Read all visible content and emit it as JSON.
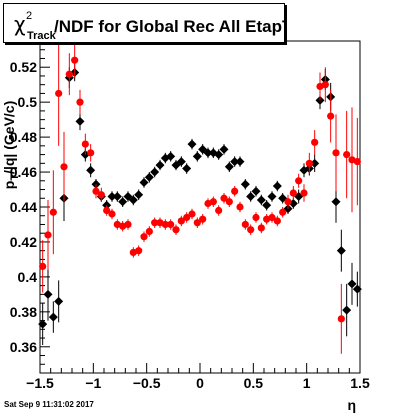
{
  "title": {
    "symbol": "χ",
    "superscript": "2",
    "subscript": "Track",
    "rest": "/NDF for Global Rec All EtapT"
  },
  "footer_timestamp": "Sat Sep  9 11:31:02 2017",
  "chart_data": {
    "type": "scatter",
    "xlabel": "η",
    "ylabel": "p_{T}/|q| (GeV/c)",
    "xlim": [
      -1.5,
      1.5
    ],
    "ylim": [
      0.345,
      0.535
    ],
    "xticks": [
      -1.5,
      -1,
      -0.5,
      0,
      0.5,
      1,
      1.5
    ],
    "xtick_labels": [
      "−1.5",
      "−1",
      "−0.5",
      "0",
      "0.5",
      "1",
      "1.5"
    ],
    "yticks": [
      0.36,
      0.38,
      0.4,
      0.42,
      0.44,
      0.46,
      0.48,
      0.5,
      0.52
    ],
    "ytick_labels": [
      "0.36",
      "0.38",
      "0.4",
      "0.42",
      "0.44",
      "0.46",
      "0.48",
      "0.5",
      "0.52"
    ],
    "series": [
      {
        "color": "#000000",
        "marker": "diamond",
        "points": [
          {
            "x": -1.475,
            "y": 0.373,
            "err": 0.012
          },
          {
            "x": -1.425,
            "y": 0.39,
            "err": 0.015
          },
          {
            "x": -1.375,
            "y": 0.377,
            "err": 0.009
          },
          {
            "x": -1.325,
            "y": 0.386,
            "err": 0.012
          },
          {
            "x": -1.275,
            "y": 0.445,
            "err": 0.013
          },
          {
            "x": -1.225,
            "y": 0.514,
            "err": 0.006
          },
          {
            "x": -1.175,
            "y": 0.517,
            "err": 0.005
          },
          {
            "x": -1.125,
            "y": 0.489,
            "err": 0.005
          },
          {
            "x": -1.075,
            "y": 0.47,
            "err": 0.004
          },
          {
            "x": -1.025,
            "y": 0.461,
            "err": 0.004
          },
          {
            "x": -0.975,
            "y": 0.453,
            "err": 0.003
          },
          {
            "x": -0.925,
            "y": 0.446,
            "err": 0.003
          },
          {
            "x": -0.875,
            "y": 0.441,
            "err": 0.003
          },
          {
            "x": -0.825,
            "y": 0.446,
            "err": 0.003
          },
          {
            "x": -0.775,
            "y": 0.446,
            "err": 0.003
          },
          {
            "x": -0.725,
            "y": 0.443,
            "err": 0.003
          },
          {
            "x": -0.675,
            "y": 0.446,
            "err": 0.003
          },
          {
            "x": -0.625,
            "y": 0.444,
            "err": 0.003
          },
          {
            "x": -0.575,
            "y": 0.447,
            "err": 0.003
          },
          {
            "x": -0.525,
            "y": 0.454,
            "err": 0.003
          },
          {
            "x": -0.475,
            "y": 0.457,
            "err": 0.003
          },
          {
            "x": -0.425,
            "y": 0.46,
            "err": 0.003
          },
          {
            "x": -0.375,
            "y": 0.464,
            "err": 0.003
          },
          {
            "x": -0.325,
            "y": 0.468,
            "err": 0.003
          },
          {
            "x": -0.275,
            "y": 0.469,
            "err": 0.003
          },
          {
            "x": -0.225,
            "y": 0.464,
            "err": 0.003
          },
          {
            "x": -0.175,
            "y": 0.466,
            "err": 0.003
          },
          {
            "x": -0.125,
            "y": 0.462,
            "err": 0.003
          },
          {
            "x": -0.075,
            "y": 0.476,
            "err": 0.003
          },
          {
            "x": -0.025,
            "y": 0.469,
            "err": 0.003
          },
          {
            "x": 0.025,
            "y": 0.473,
            "err": 0.003
          },
          {
            "x": 0.075,
            "y": 0.471,
            "err": 0.003
          },
          {
            "x": 0.125,
            "y": 0.471,
            "err": 0.003
          },
          {
            "x": 0.175,
            "y": 0.47,
            "err": 0.003
          },
          {
            "x": 0.225,
            "y": 0.473,
            "err": 0.003
          },
          {
            "x": 0.275,
            "y": 0.463,
            "err": 0.003
          },
          {
            "x": 0.325,
            "y": 0.466,
            "err": 0.003
          },
          {
            "x": 0.375,
            "y": 0.466,
            "err": 0.003
          },
          {
            "x": 0.425,
            "y": 0.453,
            "err": 0.003
          },
          {
            "x": 0.475,
            "y": 0.446,
            "err": 0.003
          },
          {
            "x": 0.525,
            "y": 0.449,
            "err": 0.003
          },
          {
            "x": 0.575,
            "y": 0.444,
            "err": 0.003
          },
          {
            "x": 0.625,
            "y": 0.441,
            "err": 0.003
          },
          {
            "x": 0.675,
            "y": 0.446,
            "err": 0.003
          },
          {
            "x": 0.725,
            "y": 0.452,
            "err": 0.003
          },
          {
            "x": 0.775,
            "y": 0.445,
            "err": 0.003
          },
          {
            "x": 0.825,
            "y": 0.439,
            "err": 0.003
          },
          {
            "x": 0.875,
            "y": 0.442,
            "err": 0.003
          },
          {
            "x": 0.925,
            "y": 0.446,
            "err": 0.004
          },
          {
            "x": 0.975,
            "y": 0.461,
            "err": 0.004
          },
          {
            "x": 1.025,
            "y": 0.462,
            "err": 0.004
          },
          {
            "x": 1.075,
            "y": 0.465,
            "err": 0.005
          },
          {
            "x": 1.125,
            "y": 0.501,
            "err": 0.005
          },
          {
            "x": 1.175,
            "y": 0.513,
            "err": 0.006
          },
          {
            "x": 1.225,
            "y": 0.503,
            "err": 0.008
          },
          {
            "x": 1.275,
            "y": 0.443,
            "err": 0.012
          },
          {
            "x": 1.325,
            "y": 0.415,
            "err": 0.012
          },
          {
            "x": 1.375,
            "y": 0.381,
            "err": 0.015
          },
          {
            "x": 1.425,
            "y": 0.396,
            "err": 0.012
          },
          {
            "x": 1.475,
            "y": 0.393,
            "err": 0.01
          }
        ]
      },
      {
        "color": "#ff0000",
        "marker": "circle",
        "points": [
          {
            "x": -1.475,
            "y": 0.406,
            "err": 0.015
          },
          {
            "x": -1.425,
            "y": 0.424,
            "err": 0.02
          },
          {
            "x": -1.375,
            "y": 0.437,
            "err": 0.024
          },
          {
            "x": -1.325,
            "y": 0.505,
            "err": 0.03
          },
          {
            "x": -1.275,
            "y": 0.463,
            "err": 0.02
          },
          {
            "x": -1.225,
            "y": 0.516,
            "err": 0.012
          },
          {
            "x": -1.175,
            "y": 0.524,
            "err": 0.01
          },
          {
            "x": -1.125,
            "y": 0.5,
            "err": 0.007
          },
          {
            "x": -1.075,
            "y": 0.476,
            "err": 0.006
          },
          {
            "x": -1.025,
            "y": 0.471,
            "err": 0.005
          },
          {
            "x": -0.975,
            "y": 0.449,
            "err": 0.004
          },
          {
            "x": -0.925,
            "y": 0.447,
            "err": 0.004
          },
          {
            "x": -0.875,
            "y": 0.438,
            "err": 0.003
          },
          {
            "x": -0.825,
            "y": 0.436,
            "err": 0.003
          },
          {
            "x": -0.775,
            "y": 0.43,
            "err": 0.003
          },
          {
            "x": -0.725,
            "y": 0.429,
            "err": 0.003
          },
          {
            "x": -0.675,
            "y": 0.43,
            "err": 0.003
          },
          {
            "x": -0.625,
            "y": 0.414,
            "err": 0.003
          },
          {
            "x": -0.575,
            "y": 0.415,
            "err": 0.003
          },
          {
            "x": -0.525,
            "y": 0.423,
            "err": 0.003
          },
          {
            "x": -0.475,
            "y": 0.426,
            "err": 0.003
          },
          {
            "x": -0.425,
            "y": 0.431,
            "err": 0.003
          },
          {
            "x": -0.375,
            "y": 0.431,
            "err": 0.003
          },
          {
            "x": -0.325,
            "y": 0.43,
            "err": 0.003
          },
          {
            "x": -0.275,
            "y": 0.43,
            "err": 0.003
          },
          {
            "x": -0.225,
            "y": 0.427,
            "err": 0.003
          },
          {
            "x": -0.175,
            "y": 0.432,
            "err": 0.003
          },
          {
            "x": -0.125,
            "y": 0.434,
            "err": 0.003
          },
          {
            "x": -0.075,
            "y": 0.436,
            "err": 0.003
          },
          {
            "x": -0.025,
            "y": 0.431,
            "err": 0.003
          },
          {
            "x": 0.025,
            "y": 0.433,
            "err": 0.003
          },
          {
            "x": 0.075,
            "y": 0.442,
            "err": 0.003
          },
          {
            "x": 0.125,
            "y": 0.443,
            "err": 0.003
          },
          {
            "x": 0.175,
            "y": 0.438,
            "err": 0.003
          },
          {
            "x": 0.225,
            "y": 0.445,
            "err": 0.003
          },
          {
            "x": 0.275,
            "y": 0.443,
            "err": 0.003
          },
          {
            "x": 0.325,
            "y": 0.449,
            "err": 0.003
          },
          {
            "x": 0.375,
            "y": 0.44,
            "err": 0.003
          },
          {
            "x": 0.425,
            "y": 0.43,
            "err": 0.003
          },
          {
            "x": 0.475,
            "y": 0.427,
            "err": 0.003
          },
          {
            "x": 0.525,
            "y": 0.434,
            "err": 0.003
          },
          {
            "x": 0.575,
            "y": 0.428,
            "err": 0.003
          },
          {
            "x": 0.625,
            "y": 0.433,
            "err": 0.003
          },
          {
            "x": 0.675,
            "y": 0.434,
            "err": 0.003
          },
          {
            "x": 0.725,
            "y": 0.432,
            "err": 0.003
          },
          {
            "x": 0.775,
            "y": 0.437,
            "err": 0.003
          },
          {
            "x": 0.825,
            "y": 0.443,
            "err": 0.004
          },
          {
            "x": 0.875,
            "y": 0.448,
            "err": 0.004
          },
          {
            "x": 0.925,
            "y": 0.455,
            "err": 0.004
          },
          {
            "x": 0.975,
            "y": 0.448,
            "err": 0.005
          },
          {
            "x": 1.025,
            "y": 0.465,
            "err": 0.006
          },
          {
            "x": 1.075,
            "y": 0.477,
            "err": 0.007
          },
          {
            "x": 1.125,
            "y": 0.509,
            "err": 0.008
          },
          {
            "x": 1.175,
            "y": 0.51,
            "err": 0.01
          },
          {
            "x": 1.225,
            "y": 0.492,
            "err": 0.015
          },
          {
            "x": 1.275,
            "y": 0.471,
            "err": 0.022
          },
          {
            "x": 1.325,
            "y": 0.376,
            "err": 0.02
          },
          {
            "x": 1.375,
            "y": 0.47,
            "err": 0.025
          },
          {
            "x": 1.425,
            "y": 0.467,
            "err": 0.03
          },
          {
            "x": 1.475,
            "y": 0.466,
            "err": 0.025
          }
        ]
      }
    ]
  }
}
